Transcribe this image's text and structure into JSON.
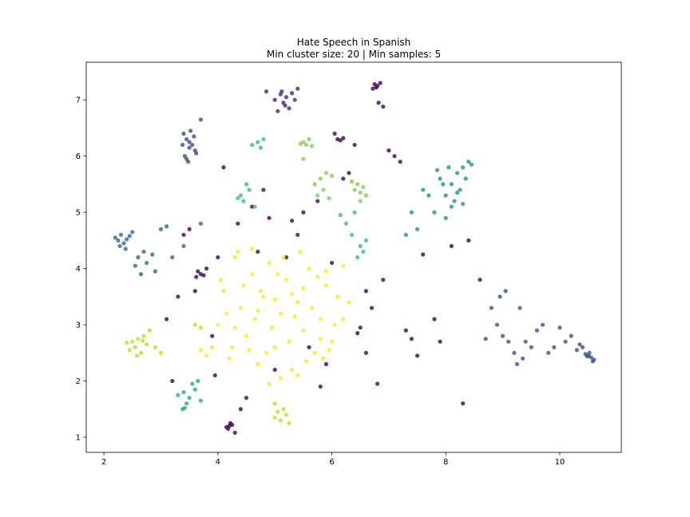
{
  "chart_data": {
    "type": "scatter",
    "title": "Hate Speech in Spanish",
    "subtitle": "Min cluster size: 20 | Min samples: 5",
    "xlim": [
      1.69,
      11.08
    ],
    "ylim": [
      0.73,
      7.67
    ],
    "xticks": [
      2,
      4,
      6,
      8,
      10
    ],
    "yticks": [
      1,
      2,
      3,
      4,
      5,
      6,
      7
    ],
    "grid": false,
    "series": [
      {
        "color": "#440154",
        "x": [
          6.75,
          6.8,
          6.85,
          6.78,
          6.72,
          6.9,
          6.82,
          4.2,
          4.22,
          4.18,
          4.25,
          4.3,
          4.15,
          3.7,
          3.65,
          3.75,
          3.8,
          3.62,
          6.1,
          6.15,
          6.2,
          3.2,
          3.3,
          3.5,
          3.9,
          4.1,
          4.4,
          4.6,
          4.9,
          5.2,
          5.5,
          5.8,
          6.0,
          6.3,
          6.6,
          6.9,
          7.2,
          7.5,
          7.8,
          8.1,
          8.4,
          7.0,
          7.3,
          6.4,
          6.7,
          5.0,
          4.7,
          4.5,
          3.4,
          3.6,
          5.9,
          6.2,
          6.5,
          7.6,
          7.1,
          6.8,
          6.6,
          4.0,
          4.8,
          5.3,
          5.6,
          3.1,
          7.9,
          8.6,
          8.3,
          5.4,
          6.45,
          7.4,
          4.35,
          3.95,
          5.75,
          6.05
        ],
        "y": [
          7.28,
          7.25,
          7.3,
          7.22,
          7.2,
          6.88,
          6.95,
          1.2,
          1.25,
          1.15,
          1.22,
          1.08,
          1.18,
          3.9,
          3.95,
          3.88,
          4.0,
          3.85,
          6.3,
          6.28,
          6.32,
          2.0,
          3.5,
          4.7,
          2.8,
          5.8,
          1.5,
          5.1,
          4.9,
          4.2,
          5.0,
          1.9,
          4.1,
          5.7,
          2.5,
          3.8,
          5.9,
          2.45,
          3.1,
          4.4,
          4.5,
          6.1,
          2.9,
          6.2,
          3.3,
          2.2,
          4.3,
          1.7,
          4.6,
          3.6,
          2.3,
          5.6,
          2.95,
          4.25,
          6.0,
          1.95,
          3.6,
          4.2,
          5.4,
          4.85,
          2.6,
          3.1,
          2.7,
          3.8,
          1.6,
          4.6,
          2.85,
          2.75,
          4.8,
          2.1,
          5.2,
          6.4
        ]
      },
      {
        "color": "#482878",
        "x": [
          5.0,
          5.1,
          5.15,
          5.2,
          5.25,
          5.3,
          5.05,
          5.35,
          5.18,
          5.12,
          4.85,
          5.4
        ],
        "y": [
          7.0,
          7.1,
          6.95,
          7.05,
          6.85,
          7.12,
          6.8,
          7.0,
          6.9,
          7.15,
          7.15,
          7.2
        ]
      },
      {
        "color": "#3e4a89",
        "x": [
          3.4,
          3.45,
          3.5,
          3.55,
          3.6,
          3.42,
          3.48,
          3.52,
          3.58,
          3.38,
          3.62,
          3.5,
          3.45,
          3.7
        ],
        "y": [
          6.4,
          6.3,
          6.25,
          6.2,
          6.1,
          6.0,
          5.9,
          6.45,
          6.35,
          6.2,
          6.05,
          6.15,
          5.95,
          6.65
        ]
      },
      {
        "color": "#31688e",
        "x": [
          2.2,
          2.25,
          2.3,
          2.35,
          2.4,
          2.45,
          2.28,
          2.38,
          2.5,
          2.6,
          2.75,
          2.9,
          2.7,
          3.0,
          3.2,
          3.4,
          3.7,
          2.65,
          2.85,
          3.1,
          2.55
        ],
        "y": [
          4.55,
          4.5,
          4.6,
          4.45,
          4.52,
          4.58,
          4.4,
          4.35,
          4.65,
          4.2,
          4.1,
          3.95,
          4.3,
          4.7,
          4.2,
          4.4,
          4.8,
          3.9,
          4.25,
          4.75,
          4.05
        ]
      },
      {
        "color": "#3b528b",
        "x": [
          8.8,
          8.9,
          9.0,
          9.05,
          9.1,
          9.2,
          9.3,
          9.35,
          9.5,
          9.6,
          9.7,
          9.8,
          10.0,
          10.1,
          10.2,
          10.3,
          10.4,
          10.45,
          10.5,
          10.55,
          10.6,
          10.52,
          10.48,
          10.58,
          8.7,
          9.25,
          9.4,
          9.9,
          10.35,
          8.95
        ],
        "y": [
          3.3,
          3.0,
          2.8,
          3.6,
          2.7,
          2.5,
          3.3,
          2.4,
          2.6,
          2.9,
          3.0,
          2.5,
          2.95,
          2.7,
          2.8,
          2.55,
          2.6,
          2.48,
          2.45,
          2.42,
          2.38,
          2.5,
          2.44,
          2.35,
          2.75,
          2.3,
          2.7,
          2.6,
          2.65,
          3.5
        ]
      },
      {
        "color": "#21918c",
        "x": [
          7.7,
          7.8,
          7.9,
          8.0,
          8.05,
          8.1,
          8.15,
          8.2,
          8.25,
          8.3,
          8.35,
          8.4,
          8.1,
          8.0,
          7.6,
          7.5,
          7.85,
          8.45,
          8.2,
          7.95,
          8.3,
          7.3,
          7.4
        ],
        "y": [
          5.3,
          5.0,
          5.6,
          5.3,
          5.8,
          5.5,
          5.2,
          5.7,
          5.4,
          5.8,
          5.6,
          5.9,
          5.1,
          4.9,
          5.4,
          4.7,
          5.75,
          5.85,
          5.35,
          5.5,
          5.15,
          4.6,
          5.0
        ]
      },
      {
        "color": "#27ad81",
        "x": [
          3.3,
          3.4,
          3.5,
          3.45,
          3.6,
          3.55,
          3.38,
          3.7,
          3.42,
          3.65
        ],
        "y": [
          1.75,
          1.8,
          1.7,
          1.6,
          1.85,
          1.95,
          1.5,
          1.65,
          1.52,
          2.0
        ]
      },
      {
        "color": "#3dbc74",
        "x": [
          6.5,
          6.55,
          6.6,
          6.45,
          6.35,
          6.25,
          6.4,
          6.15,
          4.6,
          4.7,
          4.75,
          4.8,
          4.5,
          4.4,
          4.45,
          4.55,
          4.65,
          4.35
        ],
        "y": [
          4.4,
          4.3,
          4.5,
          4.2,
          4.6,
          4.8,
          5.0,
          4.95,
          6.2,
          6.25,
          6.15,
          6.3,
          5.5,
          5.3,
          5.2,
          5.4,
          5.1,
          5.25
        ]
      },
      {
        "color": "#7ad151",
        "x": [
          5.5,
          5.55,
          5.6,
          5.45,
          5.65,
          5.5,
          5.7,
          5.8,
          5.85,
          5.75,
          5.9,
          6.4,
          6.45,
          6.5,
          6.55,
          6.6,
          6.35,
          6.5,
          6.0,
          5.95
        ],
        "y": [
          6.25,
          6.2,
          6.3,
          6.22,
          6.18,
          5.95,
          5.5,
          5.6,
          5.4,
          5.3,
          5.7,
          5.4,
          5.5,
          5.35,
          5.45,
          5.3,
          5.55,
          5.2,
          5.65,
          5.25
        ]
      },
      {
        "color": "#bddf26",
        "x": [
          2.5,
          2.55,
          2.6,
          2.65,
          2.7,
          2.75,
          2.45,
          2.8,
          2.58,
          2.68,
          2.4,
          2.9,
          3.0,
          5.0,
          5.05,
          5.1,
          5.15,
          5.2,
          5.0,
          5.25,
          3.6,
          3.7
        ],
        "y": [
          2.7,
          2.6,
          2.75,
          2.5,
          2.8,
          2.65,
          2.55,
          2.9,
          2.45,
          2.72,
          2.68,
          2.6,
          2.5,
          1.35,
          1.45,
          1.3,
          1.5,
          1.4,
          1.6,
          1.25,
          3.0,
          2.95
        ]
      },
      {
        "color": "#fde725",
        "x": [
          4.0,
          4.1,
          4.2,
          4.3,
          4.4,
          4.5,
          4.6,
          4.7,
          4.8,
          4.9,
          5.0,
          5.1,
          5.2,
          5.3,
          5.4,
          5.5,
          5.6,
          5.7,
          5.8,
          5.9,
          6.0,
          6.1,
          6.2,
          6.3,
          4.25,
          4.45,
          4.65,
          4.85,
          5.05,
          5.25,
          5.45,
          5.65,
          5.85,
          6.05,
          4.15,
          4.35,
          4.55,
          4.75,
          4.95,
          5.15,
          5.35,
          5.55,
          5.75,
          5.95,
          3.9,
          3.8,
          4.05,
          4.6,
          5.0,
          5.4,
          5.8,
          6.2,
          4.3,
          4.7,
          5.1,
          5.5,
          5.9,
          3.7,
          4.9,
          5.3
        ],
        "y": [
          3.0,
          3.6,
          2.4,
          4.2,
          3.3,
          2.8,
          3.9,
          2.3,
          3.5,
          4.1,
          2.6,
          3.2,
          3.8,
          2.2,
          3.4,
          2.9,
          4.0,
          2.5,
          3.1,
          3.7,
          2.7,
          3.5,
          4.05,
          3.4,
          2.6,
          3.7,
          3.1,
          2.5,
          3.9,
          2.7,
          4.3,
          3.3,
          2.4,
          3.0,
          3.2,
          4.3,
          2.55,
          3.6,
          2.95,
          4.2,
          3.15,
          2.35,
          3.85,
          2.55,
          2.6,
          2.45,
          3.8,
          4.35,
          3.45,
          2.1,
          2.75,
          3.1,
          2.95,
          3.25,
          2.05,
          3.65,
          3.95,
          2.55,
          1.95,
          3.55
        ]
      }
    ]
  }
}
